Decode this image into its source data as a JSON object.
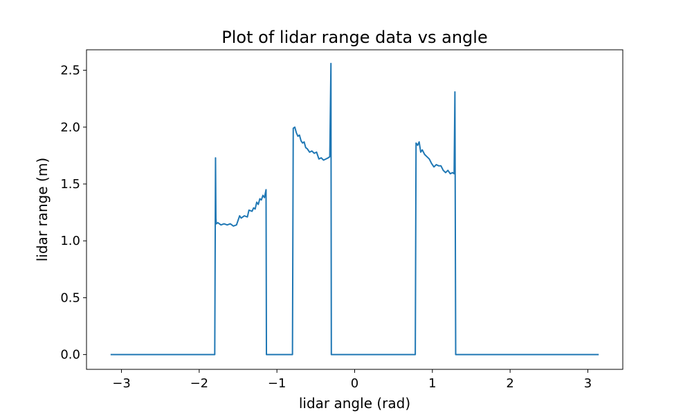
{
  "chart_data": {
    "type": "line",
    "title": "Plot of lidar range data vs angle",
    "xlabel": "lidar angle (rad)",
    "ylabel": "lidar range (m)",
    "xlim": [
      -3.45,
      3.45
    ],
    "ylim": [
      -0.13,
      2.68
    ],
    "xticks": [
      -3,
      -2,
      -1,
      0,
      1,
      2,
      3
    ],
    "xtick_labels": [
      "−3",
      "−2",
      "−1",
      "0",
      "1",
      "2",
      "3"
    ],
    "yticks": [
      0.0,
      0.5,
      1.0,
      1.5,
      2.0,
      2.5
    ],
    "ytick_labels": [
      "0.0",
      "0.5",
      "1.0",
      "1.5",
      "2.0",
      "2.5"
    ],
    "grid": false,
    "line_color": "#1f77b4",
    "series": [
      {
        "x": [
          -3.14,
          -1.8,
          -1.79,
          -1.785,
          -1.78,
          -1.76,
          -1.72,
          -1.68,
          -1.64,
          -1.6,
          -1.56,
          -1.52,
          -1.48,
          -1.46,
          -1.42,
          -1.38,
          -1.36,
          -1.32,
          -1.3,
          -1.28,
          -1.26,
          -1.24,
          -1.22,
          -1.2,
          -1.18,
          -1.16,
          -1.14,
          -1.135,
          -0.8,
          -0.79,
          -0.77,
          -0.75,
          -0.73,
          -0.71,
          -0.69,
          -0.67,
          -0.65,
          -0.63,
          -0.61,
          -0.58,
          -0.55,
          -0.52,
          -0.49,
          -0.46,
          -0.43,
          -0.4,
          -0.37,
          -0.34,
          -0.32,
          -0.305,
          -0.3,
          0.78,
          0.79,
          0.81,
          0.83,
          0.85,
          0.87,
          0.9,
          0.93,
          0.96,
          0.99,
          1.02,
          1.05,
          1.08,
          1.11,
          1.14,
          1.17,
          1.2,
          1.23,
          1.26,
          1.28,
          1.29,
          1.3,
          3.14
        ],
        "y": [
          0.0,
          0.0,
          1.73,
          1.2,
          1.15,
          1.16,
          1.14,
          1.15,
          1.14,
          1.15,
          1.13,
          1.14,
          1.22,
          1.2,
          1.22,
          1.21,
          1.27,
          1.26,
          1.29,
          1.28,
          1.34,
          1.32,
          1.37,
          1.36,
          1.4,
          1.38,
          1.45,
          0.0,
          0.0,
          1.99,
          2.0,
          1.95,
          1.92,
          1.93,
          1.88,
          1.86,
          1.87,
          1.82,
          1.81,
          1.78,
          1.79,
          1.77,
          1.78,
          1.72,
          1.73,
          1.71,
          1.72,
          1.73,
          1.74,
          2.56,
          0.0,
          0.0,
          1.86,
          1.84,
          1.87,
          1.78,
          1.8,
          1.76,
          1.74,
          1.72,
          1.68,
          1.65,
          1.67,
          1.66,
          1.66,
          1.62,
          1.6,
          1.62,
          1.59,
          1.6,
          1.59,
          2.31,
          0.0,
          0.0
        ]
      }
    ]
  }
}
